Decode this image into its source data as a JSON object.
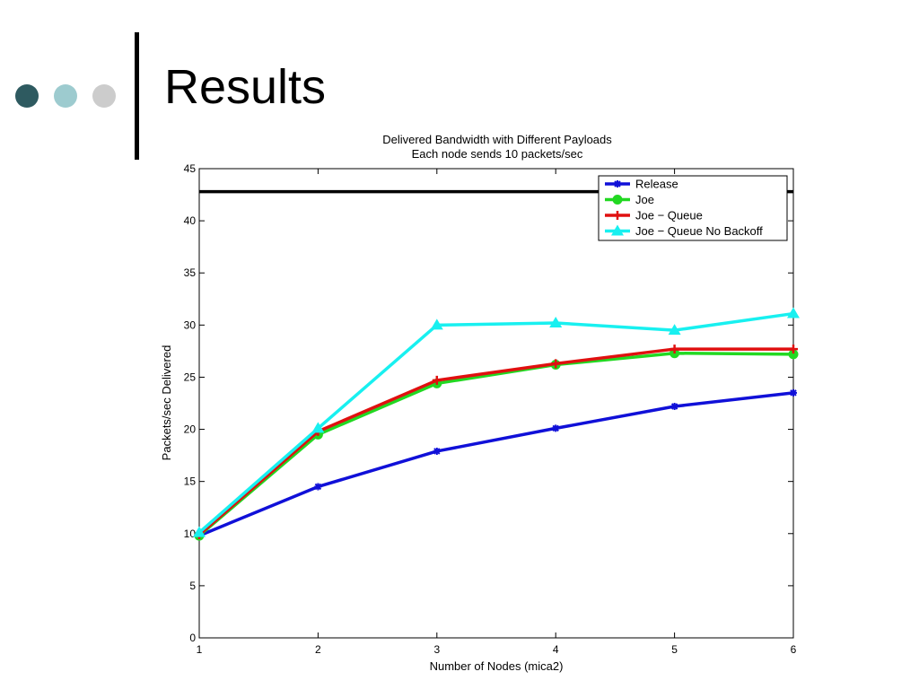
{
  "slide": {
    "title": "Results",
    "bullet_colors": [
      "#2e5a60",
      "#9dcbcf",
      "#cccccc"
    ]
  },
  "chart_data": {
    "type": "line",
    "title": "Delivered Bandwidth with Different Payloads",
    "subtitle": "Each node sends 10 packets/sec",
    "xlabel": "Number of Nodes (mica2)",
    "ylabel": "Packets/sec Delivered",
    "xlim": [
      1,
      6
    ],
    "ylim": [
      0,
      45
    ],
    "x_ticks": [
      1,
      2,
      3,
      4,
      5,
      6
    ],
    "y_ticks": [
      0,
      5,
      10,
      15,
      20,
      25,
      30,
      35,
      40,
      45
    ],
    "grid": false,
    "legend_position": "top-right",
    "reference_line": {
      "y": 42.8,
      "color": "#000000"
    },
    "x": [
      1,
      2,
      3,
      4,
      5,
      6
    ],
    "series": [
      {
        "name": "Release",
        "color": "#1010d8",
        "marker": "star",
        "values": [
          9.8,
          14.5,
          17.9,
          20.1,
          22.2,
          23.5
        ]
      },
      {
        "name": "Joe",
        "color": "#22d822",
        "marker": "circle",
        "values": [
          9.8,
          19.5,
          24.4,
          26.2,
          27.3,
          27.2
        ]
      },
      {
        "name": "Joe − Queue",
        "color": "#e01010",
        "marker": "plus",
        "values": [
          9.9,
          19.8,
          24.7,
          26.3,
          27.7,
          27.7
        ]
      },
      {
        "name": "Joe − Queue No Backoff",
        "color": "#18f0f0",
        "marker": "triangle",
        "values": [
          10.1,
          20.1,
          30.0,
          30.2,
          29.5,
          31.1
        ]
      }
    ]
  }
}
